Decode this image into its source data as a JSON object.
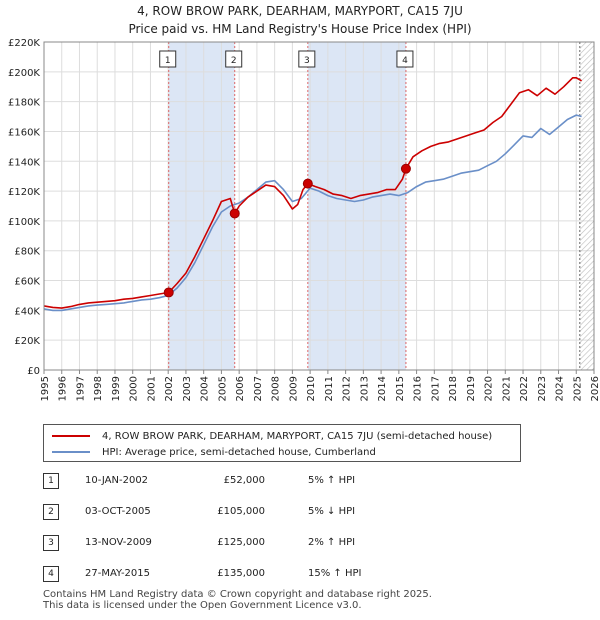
{
  "title_line1": "4, ROW BROW PARK, DEARHAM, MARYPORT, CA15 7JU",
  "title_line2": "Price paid vs. HM Land Registry's House Price Index (HPI)",
  "colors": {
    "price": "#cc0000",
    "hpi": "#6a8fc8",
    "band": "#dce6f5",
    "grid": "#dddddd"
  },
  "chart_data": {
    "type": "line",
    "title": "4, ROW BROW PARK, DEARHAM, MARYPORT, CA15 7JU — Price paid vs. HM Land Registry's House Price Index (HPI)",
    "xlabel": "",
    "ylabel": "",
    "xlim": [
      1995,
      2026
    ],
    "ylim": [
      0,
      220000
    ],
    "y_ticks": [
      0,
      20000,
      40000,
      60000,
      80000,
      100000,
      120000,
      140000,
      160000,
      180000,
      200000,
      220000
    ],
    "y_tick_labels": [
      "£0",
      "£20K",
      "£40K",
      "£60K",
      "£80K",
      "£100K",
      "£120K",
      "£140K",
      "£160K",
      "£180K",
      "£200K",
      "£220K"
    ],
    "x_ticks": [
      1995,
      1996,
      1997,
      1998,
      1999,
      2000,
      2001,
      2002,
      2003,
      2004,
      2005,
      2006,
      2007,
      2008,
      2009,
      2010,
      2011,
      2012,
      2013,
      2014,
      2015,
      2016,
      2017,
      2018,
      2019,
      2020,
      2021,
      2022,
      2023,
      2024,
      2025,
      2026
    ],
    "x_tick_labels": [
      "1995",
      "1996",
      "1997",
      "1998",
      "1999",
      "2000",
      "2001",
      "2002",
      "2003",
      "2004",
      "2005",
      "2006",
      "2007",
      "2008",
      "2009",
      "2010",
      "2011",
      "2012",
      "2013",
      "2014",
      "2015",
      "2016",
      "2017",
      "2018",
      "2019",
      "2020",
      "2021",
      "2022",
      "2023",
      "2024",
      "2025",
      "2026"
    ],
    "shaded_bands": [
      [
        2002.03,
        2005.75
      ],
      [
        2009.87,
        2015.4
      ]
    ],
    "forecast_start": 2025.2,
    "legend_position": "bottom",
    "series": [
      {
        "name": "4, ROW BROW PARK, DEARHAM, MARYPORT, CA15 7JU (semi-detached house)",
        "color": "#cc0000",
        "x": [
          1995,
          1995.5,
          1996,
          1996.5,
          1997,
          1997.5,
          1998,
          1998.5,
          1999,
          1999.5,
          2000,
          2000.5,
          2001,
          2001.5,
          2002.03,
          2002.5,
          2003,
          2003.5,
          2004,
          2004.5,
          2005,
          2005.5,
          2005.75,
          2006,
          2006.5,
          2007,
          2007.5,
          2008,
          2008.5,
          2009,
          2009.3,
          2009.6,
          2009.87,
          2010.3,
          2010.8,
          2011.3,
          2011.8,
          2012.3,
          2012.8,
          2013.3,
          2013.8,
          2014.3,
          2014.8,
          2015.2,
          2015.4,
          2015.8,
          2016.3,
          2016.8,
          2017.3,
          2017.8,
          2018.3,
          2018.8,
          2019.3,
          2019.8,
          2020.3,
          2020.8,
          2021.3,
          2021.8,
          2022.3,
          2022.8,
          2023.3,
          2023.8,
          2024.3,
          2024.8,
          2025.0,
          2025.3
        ],
        "values": [
          43000,
          42000,
          41500,
          42500,
          44000,
          45000,
          45500,
          46000,
          46500,
          47500,
          48000,
          49000,
          50000,
          51000,
          52000,
          58000,
          65000,
          76000,
          88000,
          100000,
          113000,
          115000,
          105000,
          110000,
          116000,
          120000,
          124000,
          123000,
          117000,
          108000,
          111000,
          121000,
          125000,
          123000,
          121000,
          118000,
          117000,
          115000,
          117000,
          118000,
          119000,
          121000,
          121000,
          128000,
          135000,
          143000,
          147000,
          150000,
          152000,
          153000,
          155000,
          157000,
          159000,
          161000,
          166000,
          170000,
          178000,
          186000,
          188000,
          184000,
          189000,
          185000,
          190000,
          196000,
          196000,
          194000
        ]
      },
      {
        "name": "HPI: Average price, semi-detached house, Cumberland",
        "color": "#6a8fc8",
        "x": [
          1995,
          1995.5,
          1996,
          1996.5,
          1997,
          1997.5,
          1998,
          1998.5,
          1999,
          1999.5,
          2000,
          2000.5,
          2001,
          2001.5,
          2002,
          2002.5,
          2003,
          2003.5,
          2004,
          2004.5,
          2005,
          2005.5,
          2006,
          2006.5,
          2007,
          2007.5,
          2008,
          2008.5,
          2009,
          2009.5,
          2010,
          2010.5,
          2011,
          2011.5,
          2012,
          2012.5,
          2013,
          2013.5,
          2014,
          2014.5,
          2015,
          2015.5,
          2016,
          2016.5,
          2017,
          2017.5,
          2018,
          2018.5,
          2019,
          2019.5,
          2020,
          2020.5,
          2021,
          2021.5,
          2022,
          2022.5,
          2023,
          2023.5,
          2024,
          2024.5,
          2025,
          2025.3
        ],
        "values": [
          41000,
          40000,
          40000,
          41000,
          42000,
          43000,
          43500,
          44000,
          44500,
          45000,
          46000,
          47000,
          47500,
          48500,
          50000,
          55000,
          62000,
          72000,
          84000,
          96000,
          106000,
          110000,
          112000,
          116000,
          121000,
          126000,
          127000,
          121000,
          113000,
          115000,
          122000,
          120000,
          117000,
          115000,
          114000,
          113000,
          114000,
          116000,
          117000,
          118000,
          117000,
          119000,
          123000,
          126000,
          127000,
          128000,
          130000,
          132000,
          133000,
          134000,
          137000,
          140000,
          145000,
          151000,
          157000,
          156000,
          162000,
          158000,
          163000,
          168000,
          171000,
          170000
        ]
      }
    ],
    "markers": [
      {
        "label": "1",
        "x": 2002.03,
        "value": 52000
      },
      {
        "label": "2",
        "x": 2005.75,
        "value": 105000
      },
      {
        "label": "3",
        "x": 2009.87,
        "value": 125000
      },
      {
        "label": "4",
        "x": 2015.4,
        "value": 135000
      }
    ]
  },
  "legend": {
    "price_label": "4, ROW BROW PARK, DEARHAM, MARYPORT, CA15 7JU (semi-detached house)",
    "hpi_label": "HPI: Average price, semi-detached house, Cumberland"
  },
  "sales": [
    {
      "num": "1",
      "date": "10-JAN-2002",
      "price": "£52,000",
      "hpi": "5% ↑ HPI"
    },
    {
      "num": "2",
      "date": "03-OCT-2005",
      "price": "£105,000",
      "hpi": "5% ↓ HPI"
    },
    {
      "num": "3",
      "date": "13-NOV-2009",
      "price": "£125,000",
      "hpi": "2% ↑ HPI"
    },
    {
      "num": "4",
      "date": "27-MAY-2015",
      "price": "£135,000",
      "hpi": "15% ↑ HPI"
    }
  ],
  "footer": {
    "line1": "Contains HM Land Registry data © Crown copyright and database right 2025.",
    "line2": "This data is licensed under the Open Government Licence v3.0."
  }
}
